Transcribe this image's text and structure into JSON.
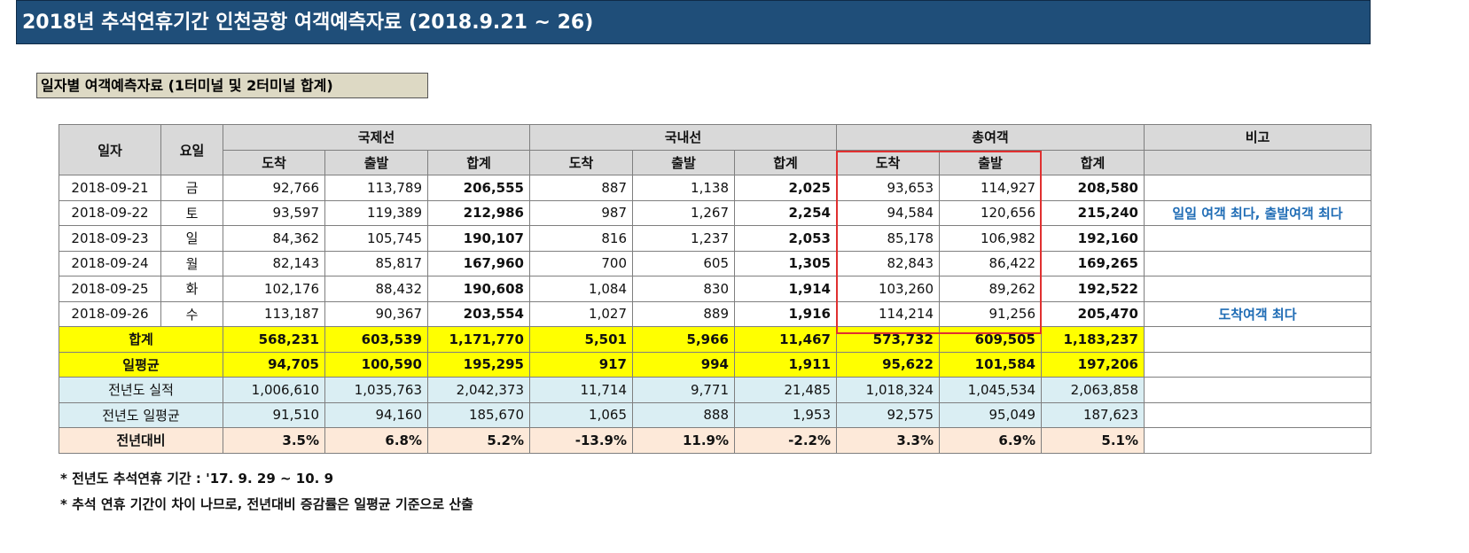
{
  "title": "2018년 추석연휴기간 인천공항 여객예측자료 (2018.9.21 ~ 26)",
  "subtitle": "일자별 여객예측자료 (1터미널 및 2터미널 합계)",
  "headers": {
    "date": "일자",
    "day": "요일",
    "intl": "국제선",
    "dom": "국내선",
    "total": "총여객",
    "remark": "비고",
    "arrive": "도착",
    "depart": "출발",
    "sum": "합계"
  },
  "rows": [
    {
      "date": "2018-09-21",
      "day": "금",
      "ia": "92,766",
      "id": "113,789",
      "is": "206,555",
      "da": "887",
      "dd": "1,138",
      "ds": "2,025",
      "ta": "93,653",
      "td": "114,927",
      "ts": "208,580",
      "note": ""
    },
    {
      "date": "2018-09-22",
      "day": "토",
      "ia": "93,597",
      "id": "119,389",
      "is": "212,986",
      "da": "987",
      "dd": "1,267",
      "ds": "2,254",
      "ta": "94,584",
      "td": "120,656",
      "ts": "215,240",
      "note": "일일 여객 최다, 출발여객 최다"
    },
    {
      "date": "2018-09-23",
      "day": "일",
      "ia": "84,362",
      "id": "105,745",
      "is": "190,107",
      "da": "816",
      "dd": "1,237",
      "ds": "2,053",
      "ta": "85,178",
      "td": "106,982",
      "ts": "192,160",
      "note": ""
    },
    {
      "date": "2018-09-24",
      "day": "월",
      "ia": "82,143",
      "id": "85,817",
      "is": "167,960",
      "da": "700",
      "dd": "605",
      "ds": "1,305",
      "ta": "82,843",
      "td": "86,422",
      "ts": "169,265",
      "note": ""
    },
    {
      "date": "2018-09-25",
      "day": "화",
      "ia": "102,176",
      "id": "88,432",
      "is": "190,608",
      "da": "1,084",
      "dd": "830",
      "ds": "1,914",
      "ta": "103,260",
      "td": "89,262",
      "ts": "192,522",
      "note": ""
    },
    {
      "date": "2018-09-26",
      "day": "수",
      "ia": "113,187",
      "id": "90,367",
      "is": "203,554",
      "da": "1,027",
      "dd": "889",
      "ds": "1,916",
      "ta": "114,214",
      "td": "91,256",
      "ts": "205,470",
      "note": "도착여객 최다"
    }
  ],
  "summary": [
    {
      "label": "합계",
      "ia": "568,231",
      "id": "603,539",
      "is": "1,171,770",
      "da": "5,501",
      "dd": "5,966",
      "ds": "11,467",
      "ta": "573,732",
      "td": "609,505",
      "ts": "1,183,237"
    },
    {
      "label": "일평균",
      "ia": "94,705",
      "id": "100,590",
      "is": "195,295",
      "da": "917",
      "dd": "994",
      "ds": "1,911",
      "ta": "95,622",
      "td": "101,584",
      "ts": "197,206"
    },
    {
      "label": "전년도 실적",
      "ia": "1,006,610",
      "id": "1,035,763",
      "is": "2,042,373",
      "da": "11,714",
      "dd": "9,771",
      "ds": "21,485",
      "ta": "1,018,324",
      "td": "1,045,534",
      "ts": "2,063,858"
    },
    {
      "label": "전년도 일평균",
      "ia": "91,510",
      "id": "94,160",
      "is": "185,670",
      "da": "1,065",
      "dd": "888",
      "ds": "1,953",
      "ta": "92,575",
      "td": "95,049",
      "ts": "187,623"
    },
    {
      "label": "전년대비",
      "ia": "3.5%",
      "id": "6.8%",
      "is": "5.2%",
      "da": "-13.9%",
      "dd": "11.9%",
      "ds": "-2.2%",
      "ta": "3.3%",
      "td": "6.9%",
      "ts": "5.1%"
    }
  ],
  "footnotes": [
    "* 전년도 추석연휴 기간 : '17. 9. 29 ~ 10. 9",
    "* 추석 연휴 기간이 차이 나므로, 전년대비 증감률은 일평균 기준으로 산출"
  ],
  "colors": {
    "title_bg": "#1f4e79",
    "header_bg": "#d9d9d9",
    "total_bg": "#ffff00",
    "prev_bg": "#daeef3",
    "ratio_bg": "#fde9d9",
    "note_text": "#1f6cb5",
    "highlight_box": "#e03030"
  }
}
